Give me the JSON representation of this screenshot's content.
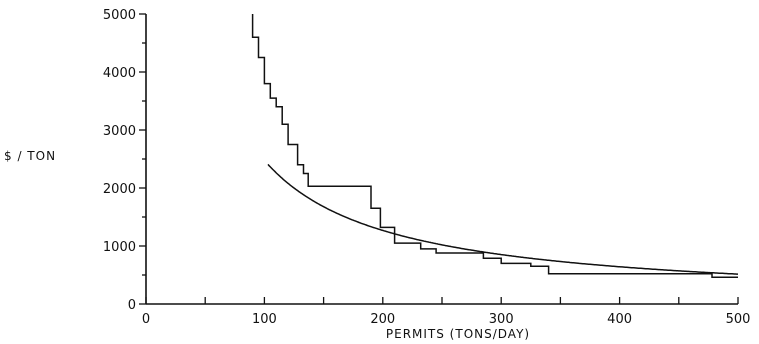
{
  "chart_data": {
    "type": "line",
    "title": "",
    "xlabel": "PERMITS (TONS/DAY)",
    "ylabel": "$ / TON",
    "xlim": [
      0,
      500
    ],
    "ylim": [
      0,
      5000
    ],
    "x_ticks": [
      "0",
      "100",
      "200",
      "300",
      "400",
      "500"
    ],
    "y_ticks": [
      "0",
      "1000",
      "2000",
      "3000",
      "4000",
      "5000"
    ],
    "grid": false,
    "legend": "none",
    "series": [
      {
        "style": "step",
        "points": [
          [
            90,
            5000
          ],
          [
            90,
            4600
          ],
          [
            95,
            4600
          ],
          [
            95,
            4250
          ],
          [
            100,
            4250
          ],
          [
            100,
            3800
          ],
          [
            105,
            3800
          ],
          [
            105,
            3550
          ],
          [
            110,
            3550
          ],
          [
            110,
            3400
          ],
          [
            115,
            3400
          ],
          [
            115,
            3100
          ],
          [
            120,
            3100
          ],
          [
            120,
            2750
          ],
          [
            128,
            2750
          ],
          [
            128,
            2400
          ],
          [
            133,
            2400
          ],
          [
            133,
            2250
          ],
          [
            137,
            2250
          ],
          [
            137,
            2030
          ],
          [
            190,
            2030
          ],
          [
            190,
            1650
          ],
          [
            198,
            1650
          ],
          [
            198,
            1320
          ],
          [
            210,
            1320
          ],
          [
            210,
            1050
          ],
          [
            232,
            1050
          ],
          [
            232,
            950
          ],
          [
            245,
            950
          ],
          [
            245,
            880
          ],
          [
            285,
            880
          ],
          [
            285,
            790
          ],
          [
            300,
            790
          ],
          [
            300,
            700
          ],
          [
            325,
            700
          ],
          [
            325,
            650
          ],
          [
            340,
            650
          ],
          [
            340,
            520
          ],
          [
            478,
            520
          ],
          [
            478,
            460
          ],
          [
            500,
            460
          ]
        ]
      },
      {
        "style": "smooth",
        "function": "y = 260000 / (x + 5)",
        "x_range": [
          103,
          500
        ]
      }
    ]
  }
}
